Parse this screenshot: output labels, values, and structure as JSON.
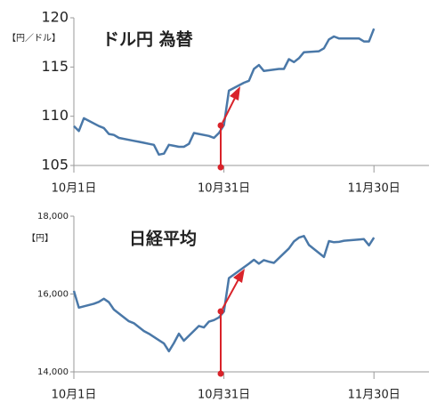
{
  "chart_data": [
    {
      "type": "line",
      "title": "ドル円  為替",
      "ylabel": "【円／ドル】",
      "x": [
        1,
        2,
        3,
        6,
        7,
        8,
        9,
        10,
        13,
        14,
        15,
        16,
        17,
        18,
        19,
        20,
        21,
        22,
        23,
        24,
        25,
        28,
        29,
        30,
        31,
        32,
        35,
        36,
        37,
        38,
        39,
        42,
        43,
        44,
        45,
        46,
        47,
        50,
        51,
        52,
        53,
        54,
        57,
        58,
        59,
        60,
        61
      ],
      "series": [
        {
          "color": "#4a78a8",
          "values": [
            109.0,
            108.5,
            109.8,
            109.0,
            108.8,
            108.2,
            108.1,
            107.8,
            107.5,
            107.4,
            107.3,
            107.2,
            107.1,
            106.1,
            106.2,
            107.1,
            107.0,
            106.9,
            106.9,
            107.2,
            108.3,
            108.0,
            107.8,
            108.3,
            109.1,
            112.6,
            113.4,
            113.6,
            114.8,
            115.2,
            114.6,
            114.8,
            114.8,
            115.8,
            115.5,
            115.9,
            116.5,
            116.6,
            116.9,
            117.8,
            118.1,
            117.9,
            117.9,
            117.9,
            117.6,
            117.6,
            118.9
          ]
        }
      ],
      "xlim": [
        1,
        72
      ],
      "xticks": [
        {
          "value": 1,
          "label": "10月1日"
        },
        {
          "value": 31,
          "label": "10月31日"
        },
        {
          "value": 61,
          "label": "11月30日"
        }
      ],
      "ylim": [
        105,
        120
      ],
      "yticks": [
        105,
        110,
        115,
        120
      ]
    },
    {
      "type": "line",
      "title": "日経平均",
      "ylabel": "【円】",
      "x": [
        1,
        2,
        5,
        6,
        7,
        8,
        9,
        12,
        13,
        14,
        15,
        16,
        19,
        20,
        21,
        22,
        23,
        26,
        27,
        28,
        29,
        30,
        31,
        32,
        33,
        36,
        37,
        38,
        39,
        40,
        41,
        44,
        45,
        46,
        47,
        48,
        51,
        52,
        53,
        54,
        55,
        58,
        59,
        60,
        61
      ],
      "series": [
        {
          "color": "#4a78a8",
          "values": [
            16080,
            15650,
            15750,
            15800,
            15880,
            15790,
            15600,
            15300,
            15250,
            15150,
            15050,
            14980,
            14730,
            14530,
            14740,
            14980,
            14800,
            15180,
            15140,
            15290,
            15330,
            15400,
            15550,
            16410,
            16500,
            16780,
            16880,
            16780,
            16870,
            16830,
            16800,
            17170,
            17350,
            17450,
            17490,
            17260,
            16950,
            17360,
            17330,
            17340,
            17370,
            17400,
            17410,
            17250,
            17450
          ]
        }
      ],
      "xlim": [
        1,
        72
      ],
      "xticks": [
        {
          "value": 1,
          "label": "10月1日"
        },
        {
          "value": 31,
          "label": "10月31日"
        },
        {
          "value": 61,
          "label": "11月30日"
        }
      ],
      "ylim": [
        14000,
        18000
      ],
      "yticks": [
        {
          "value": 14000,
          "label": "14,000"
        },
        {
          "value": 16000,
          "label": "16,000"
        },
        {
          "value": 18000,
          "label": "18,000"
        }
      ]
    }
  ]
}
